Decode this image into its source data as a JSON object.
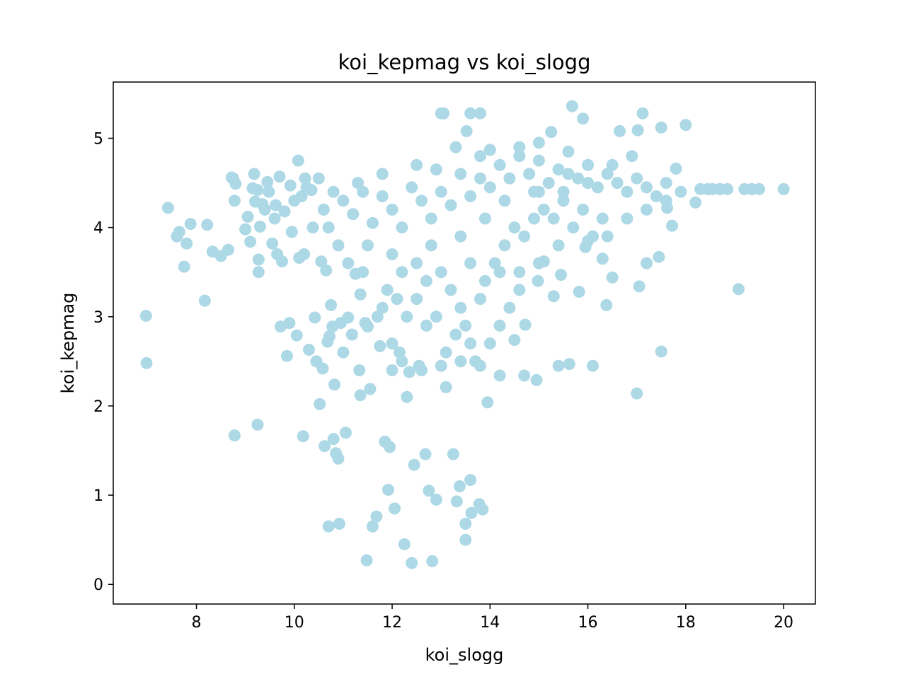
{
  "chart_data": {
    "type": "scatter",
    "title": "koi_kepmag vs koi_slogg",
    "xlabel": "koi_slogg",
    "ylabel": "koi_kepmag",
    "xlim": [
      6.3,
      20.65
    ],
    "ylim": [
      -0.22,
      5.63
    ],
    "xticks": [
      8,
      10,
      12,
      14,
      16,
      18,
      20
    ],
    "yticks": [
      0,
      1,
      2,
      3,
      4,
      5
    ],
    "grid": false,
    "legend": "none",
    "marker_color": "#add8e6",
    "series": [
      {
        "values": [
          [
            6.97,
            3.01
          ],
          [
            6.98,
            2.48
          ],
          [
            7.42,
            4.22
          ],
          [
            7.6,
            3.9
          ],
          [
            7.65,
            3.95
          ],
          [
            7.75,
            3.56
          ],
          [
            7.8,
            3.82
          ],
          [
            7.88,
            4.04
          ],
          [
            8.17,
            3.18
          ],
          [
            8.22,
            4.03
          ],
          [
            8.33,
            3.73
          ],
          [
            8.5,
            3.68
          ],
          [
            8.65,
            3.75
          ],
          [
            8.72,
            4.56
          ],
          [
            8.75,
            4.55
          ],
          [
            8.78,
            4.3
          ],
          [
            8.78,
            1.67
          ],
          [
            8.8,
            4.49
          ],
          [
            9.0,
            3.98
          ],
          [
            9.05,
            4.12
          ],
          [
            9.1,
            3.84
          ],
          [
            9.15,
            4.44
          ],
          [
            9.18,
            4.6
          ],
          [
            9.2,
            4.29
          ],
          [
            9.25,
            4.42
          ],
          [
            9.25,
            1.79
          ],
          [
            9.27,
            3.64
          ],
          [
            9.27,
            3.5
          ],
          [
            9.3,
            4.01
          ],
          [
            9.35,
            4.26
          ],
          [
            9.4,
            4.2
          ],
          [
            9.45,
            4.51
          ],
          [
            9.48,
            4.4
          ],
          [
            9.55,
            3.82
          ],
          [
            9.6,
            4.1
          ],
          [
            9.62,
            4.25
          ],
          [
            9.65,
            3.7
          ],
          [
            9.7,
            4.57
          ],
          [
            9.72,
            2.89
          ],
          [
            9.75,
            3.62
          ],
          [
            9.8,
            4.18
          ],
          [
            9.85,
            2.56
          ],
          [
            9.9,
            2.93
          ],
          [
            9.92,
            4.47
          ],
          [
            9.95,
            3.95
          ],
          [
            10.0,
            4.3
          ],
          [
            10.05,
            2.79
          ],
          [
            10.08,
            4.75
          ],
          [
            10.1,
            3.66
          ],
          [
            10.15,
            4.35
          ],
          [
            10.18,
            1.66
          ],
          [
            10.2,
            3.7
          ],
          [
            10.22,
            4.55
          ],
          [
            10.25,
            4.45
          ],
          [
            10.3,
            2.63
          ],
          [
            10.35,
            4.42
          ],
          [
            10.38,
            4.0
          ],
          [
            10.42,
            2.99
          ],
          [
            10.45,
            2.5
          ],
          [
            10.5,
            4.55
          ],
          [
            10.52,
            2.02
          ],
          [
            10.55,
            3.62
          ],
          [
            10.58,
            2.42
          ],
          [
            10.62,
            1.55
          ],
          [
            10.65,
            3.52
          ],
          [
            10.68,
            2.72
          ],
          [
            10.7,
            0.65
          ],
          [
            10.72,
            2.78
          ],
          [
            10.75,
            3.13
          ],
          [
            10.78,
            2.89
          ],
          [
            10.8,
            1.63
          ],
          [
            10.82,
            2.24
          ],
          [
            10.85,
            1.47
          ],
          [
            10.9,
            1.41
          ],
          [
            10.92,
            0.68
          ],
          [
            10.95,
            2.93
          ],
          [
            11.0,
            2.6
          ],
          [
            11.05,
            1.7
          ],
          [
            11.1,
            2.99
          ],
          [
            11.18,
            2.8
          ],
          [
            11.25,
            3.48
          ],
          [
            11.33,
            2.4
          ],
          [
            11.35,
            2.12
          ],
          [
            11.35,
            3.25
          ],
          [
            11.45,
            2.93
          ],
          [
            11.48,
            0.27
          ],
          [
            11.5,
            2.89
          ],
          [
            11.55,
            2.19
          ],
          [
            11.6,
            0.65
          ],
          [
            11.68,
            0.76
          ],
          [
            11.75,
            2.67
          ],
          [
            11.8,
            3.1
          ],
          [
            11.85,
            1.6
          ],
          [
            11.92,
            1.06
          ],
          [
            11.95,
            1.54
          ],
          [
            12.0,
            2.4
          ],
          [
            12.05,
            0.85
          ],
          [
            12.15,
            2.6
          ],
          [
            12.25,
            0.45
          ],
          [
            12.3,
            2.1
          ],
          [
            12.35,
            2.38
          ],
          [
            12.4,
            0.24
          ],
          [
            12.45,
            1.34
          ],
          [
            12.55,
            2.45
          ],
          [
            12.68,
            1.46
          ],
          [
            12.75,
            1.05
          ],
          [
            12.82,
            0.26
          ],
          [
            12.9,
            0.95
          ],
          [
            13.0,
            5.28
          ],
          [
            13.05,
            5.28
          ],
          [
            13.1,
            2.21
          ],
          [
            13.25,
            1.46
          ],
          [
            13.32,
            0.93
          ],
          [
            13.38,
            1.1
          ],
          [
            13.5,
            0.68
          ],
          [
            13.5,
            0.5
          ],
          [
            13.52,
            5.08
          ],
          [
            13.6,
            5.28
          ],
          [
            13.6,
            1.17
          ],
          [
            13.62,
            0.8
          ],
          [
            13.78,
            0.9
          ],
          [
            13.8,
            5.28
          ],
          [
            13.85,
            0.84
          ],
          [
            13.95,
            2.04
          ],
          [
            14.0,
            4.87
          ],
          [
            14.2,
            2.34
          ],
          [
            14.5,
            2.74
          ],
          [
            14.7,
            2.34
          ],
          [
            14.72,
            2.91
          ],
          [
            14.95,
            2.29
          ],
          [
            14.98,
            3.4
          ],
          [
            15.1,
            3.62
          ],
          [
            15.25,
            5.07
          ],
          [
            15.3,
            3.23
          ],
          [
            15.4,
            2.45
          ],
          [
            15.45,
            3.47
          ],
          [
            15.62,
            2.47
          ],
          [
            15.68,
            5.36
          ],
          [
            15.82,
            3.28
          ],
          [
            15.9,
            5.22
          ],
          [
            15.95,
            3.78
          ],
          [
            16.1,
            2.45
          ],
          [
            16.3,
            3.65
          ],
          [
            16.38,
            3.13
          ],
          [
            16.5,
            3.44
          ],
          [
            16.65,
            5.08
          ],
          [
            17.0,
            2.14
          ],
          [
            17.02,
            5.09
          ],
          [
            17.05,
            3.34
          ],
          [
            17.12,
            5.28
          ],
          [
            17.2,
            3.6
          ],
          [
            17.45,
            3.67
          ],
          [
            17.5,
            2.61
          ],
          [
            17.5,
            5.12
          ],
          [
            17.62,
            4.22
          ],
          [
            17.72,
            4.02
          ],
          [
            17.8,
            4.66
          ],
          [
            18.0,
            5.15
          ],
          [
            18.2,
            4.28
          ],
          [
            18.3,
            4.43
          ],
          [
            18.45,
            4.43
          ],
          [
            18.55,
            4.43
          ],
          [
            18.7,
            4.43
          ],
          [
            18.85,
            4.43
          ],
          [
            19.08,
            3.31
          ],
          [
            19.2,
            4.43
          ],
          [
            19.35,
            4.43
          ],
          [
            19.5,
            4.43
          ],
          [
            20.0,
            4.43
          ],
          [
            11.0,
            4.3
          ],
          [
            11.2,
            4.15
          ],
          [
            11.4,
            4.4
          ],
          [
            11.6,
            4.05
          ],
          [
            11.8,
            4.35
          ],
          [
            12.0,
            4.2
          ],
          [
            12.2,
            4.0
          ],
          [
            12.4,
            4.45
          ],
          [
            12.6,
            4.3
          ],
          [
            12.8,
            4.1
          ],
          [
            13.0,
            4.4
          ],
          [
            13.2,
            4.25
          ],
          [
            13.4,
            4.6
          ],
          [
            13.6,
            4.35
          ],
          [
            13.8,
            4.55
          ],
          [
            14.0,
            4.45
          ],
          [
            14.2,
            4.7
          ],
          [
            14.4,
            4.55
          ],
          [
            14.6,
            4.8
          ],
          [
            14.8,
            4.6
          ],
          [
            15.0,
            4.75
          ],
          [
            15.2,
            4.5
          ],
          [
            15.4,
            4.65
          ],
          [
            15.6,
            4.85
          ],
          [
            15.8,
            4.55
          ],
          [
            16.0,
            4.7
          ],
          [
            16.2,
            4.45
          ],
          [
            16.4,
            4.6
          ],
          [
            16.6,
            4.5
          ],
          [
            16.8,
            4.4
          ],
          [
            17.0,
            4.55
          ],
          [
            17.2,
            4.45
          ],
          [
            17.4,
            4.35
          ],
          [
            17.6,
            4.5
          ],
          [
            11.5,
            3.8
          ],
          [
            12.0,
            3.7
          ],
          [
            12.5,
            3.6
          ],
          [
            13.0,
            3.5
          ],
          [
            13.2,
            3.3
          ],
          [
            13.4,
            3.1
          ],
          [
            13.5,
            2.9
          ],
          [
            13.6,
            2.7
          ],
          [
            13.7,
            2.5
          ],
          [
            13.8,
            3.2
          ],
          [
            13.9,
            3.4
          ],
          [
            13.3,
            2.8
          ],
          [
            13.1,
            2.6
          ],
          [
            12.9,
            3.0
          ],
          [
            12.7,
            2.9
          ],
          [
            12.5,
            3.2
          ],
          [
            12.3,
            3.0
          ],
          [
            12.1,
            3.2
          ],
          [
            11.9,
            3.3
          ],
          [
            14.1,
            3.6
          ],
          [
            14.3,
            3.8
          ],
          [
            14.5,
            4.0
          ],
          [
            14.7,
            3.9
          ],
          [
            14.9,
            4.1
          ],
          [
            15.1,
            4.2
          ],
          [
            15.3,
            4.1
          ],
          [
            15.5,
            4.3
          ],
          [
            15.7,
            4.0
          ],
          [
            15.9,
            4.2
          ],
          [
            16.1,
            3.9
          ],
          [
            16.3,
            4.1
          ],
          [
            12.8,
            3.8
          ],
          [
            13.4,
            3.9
          ],
          [
            13.9,
            4.1
          ],
          [
            14.3,
            4.3
          ],
          [
            14.9,
            4.4
          ],
          [
            15.6,
            4.6
          ],
          [
            16.5,
            4.7
          ],
          [
            16.9,
            4.8
          ],
          [
            15.0,
            4.95
          ],
          [
            14.6,
            4.9
          ],
          [
            13.8,
            4.8
          ],
          [
            13.3,
            4.9
          ],
          [
            12.5,
            4.7
          ],
          [
            12.9,
            4.65
          ],
          [
            11.8,
            4.6
          ],
          [
            11.3,
            4.5
          ],
          [
            10.8,
            4.4
          ],
          [
            10.6,
            4.2
          ],
          [
            10.7,
            4.0
          ],
          [
            10.9,
            3.8
          ],
          [
            11.1,
            3.6
          ],
          [
            11.4,
            3.5
          ],
          [
            12.2,
            3.5
          ],
          [
            12.7,
            3.4
          ],
          [
            13.6,
            3.6
          ],
          [
            14.2,
            3.5
          ],
          [
            14.6,
            3.5
          ],
          [
            15.0,
            3.6
          ],
          [
            15.4,
            3.8
          ],
          [
            16.0,
            3.85
          ],
          [
            16.4,
            3.9
          ],
          [
            16.8,
            4.1
          ],
          [
            17.2,
            4.2
          ],
          [
            17.6,
            4.3
          ],
          [
            17.9,
            4.4
          ],
          [
            11.7,
            3.0
          ],
          [
            12.0,
            2.7
          ],
          [
            12.2,
            2.5
          ],
          [
            12.6,
            2.4
          ],
          [
            13.0,
            2.45
          ],
          [
            13.4,
            2.5
          ],
          [
            13.8,
            2.45
          ],
          [
            14.0,
            2.7
          ],
          [
            14.2,
            2.9
          ],
          [
            14.4,
            3.1
          ],
          [
            14.6,
            3.3
          ],
          [
            15.0,
            4.4
          ],
          [
            15.5,
            4.4
          ],
          [
            16.0,
            4.5
          ]
        ]
      }
    ]
  }
}
